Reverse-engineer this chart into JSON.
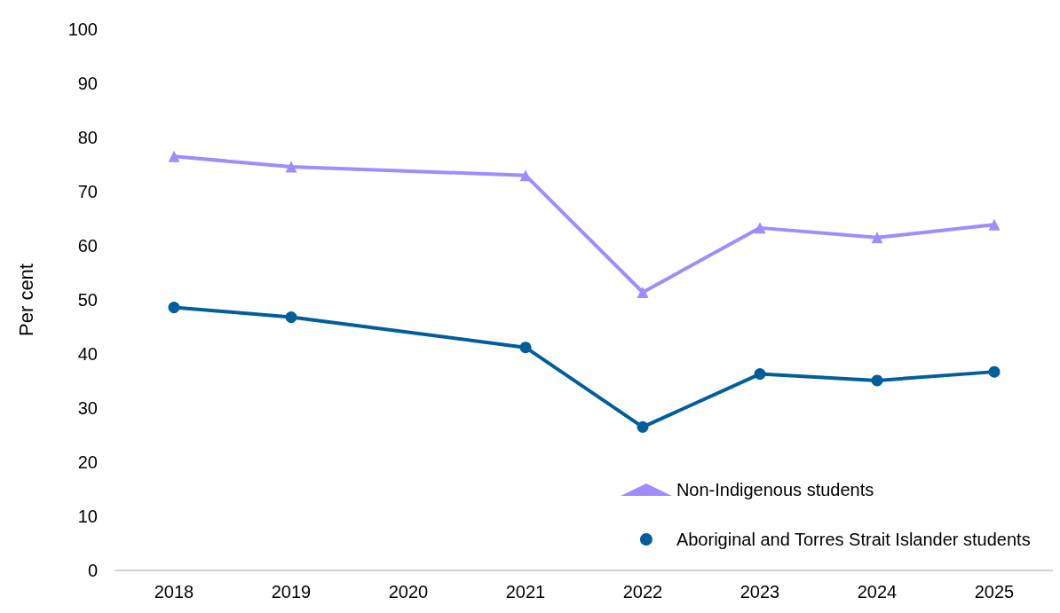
{
  "chart_data": {
    "type": "line",
    "ylabel": "Per cent",
    "categories": [
      "2018",
      "2019",
      "2020",
      "2021",
      "2022",
      "2023",
      "2024",
      "2025"
    ],
    "series": [
      {
        "name": "Non-Indigenous students",
        "color": "#a08cff",
        "marker": "triangle",
        "values": [
          76.5,
          74.6,
          null,
          73.0,
          51.4,
          63.3,
          61.5,
          63.9
        ]
      },
      {
        "name": "Aboriginal and Torres Strait Islander students",
        "color": "#005f9a",
        "marker": "circle",
        "values": [
          48.6,
          46.8,
          null,
          41.2,
          26.5,
          36.3,
          35.1,
          36.7
        ]
      }
    ],
    "ylim": [
      0,
      100
    ],
    "yticks": [
      0,
      10,
      20,
      30,
      40,
      50,
      60,
      70,
      80,
      90,
      100
    ],
    "grid": false,
    "legend": "bottom right"
  }
}
